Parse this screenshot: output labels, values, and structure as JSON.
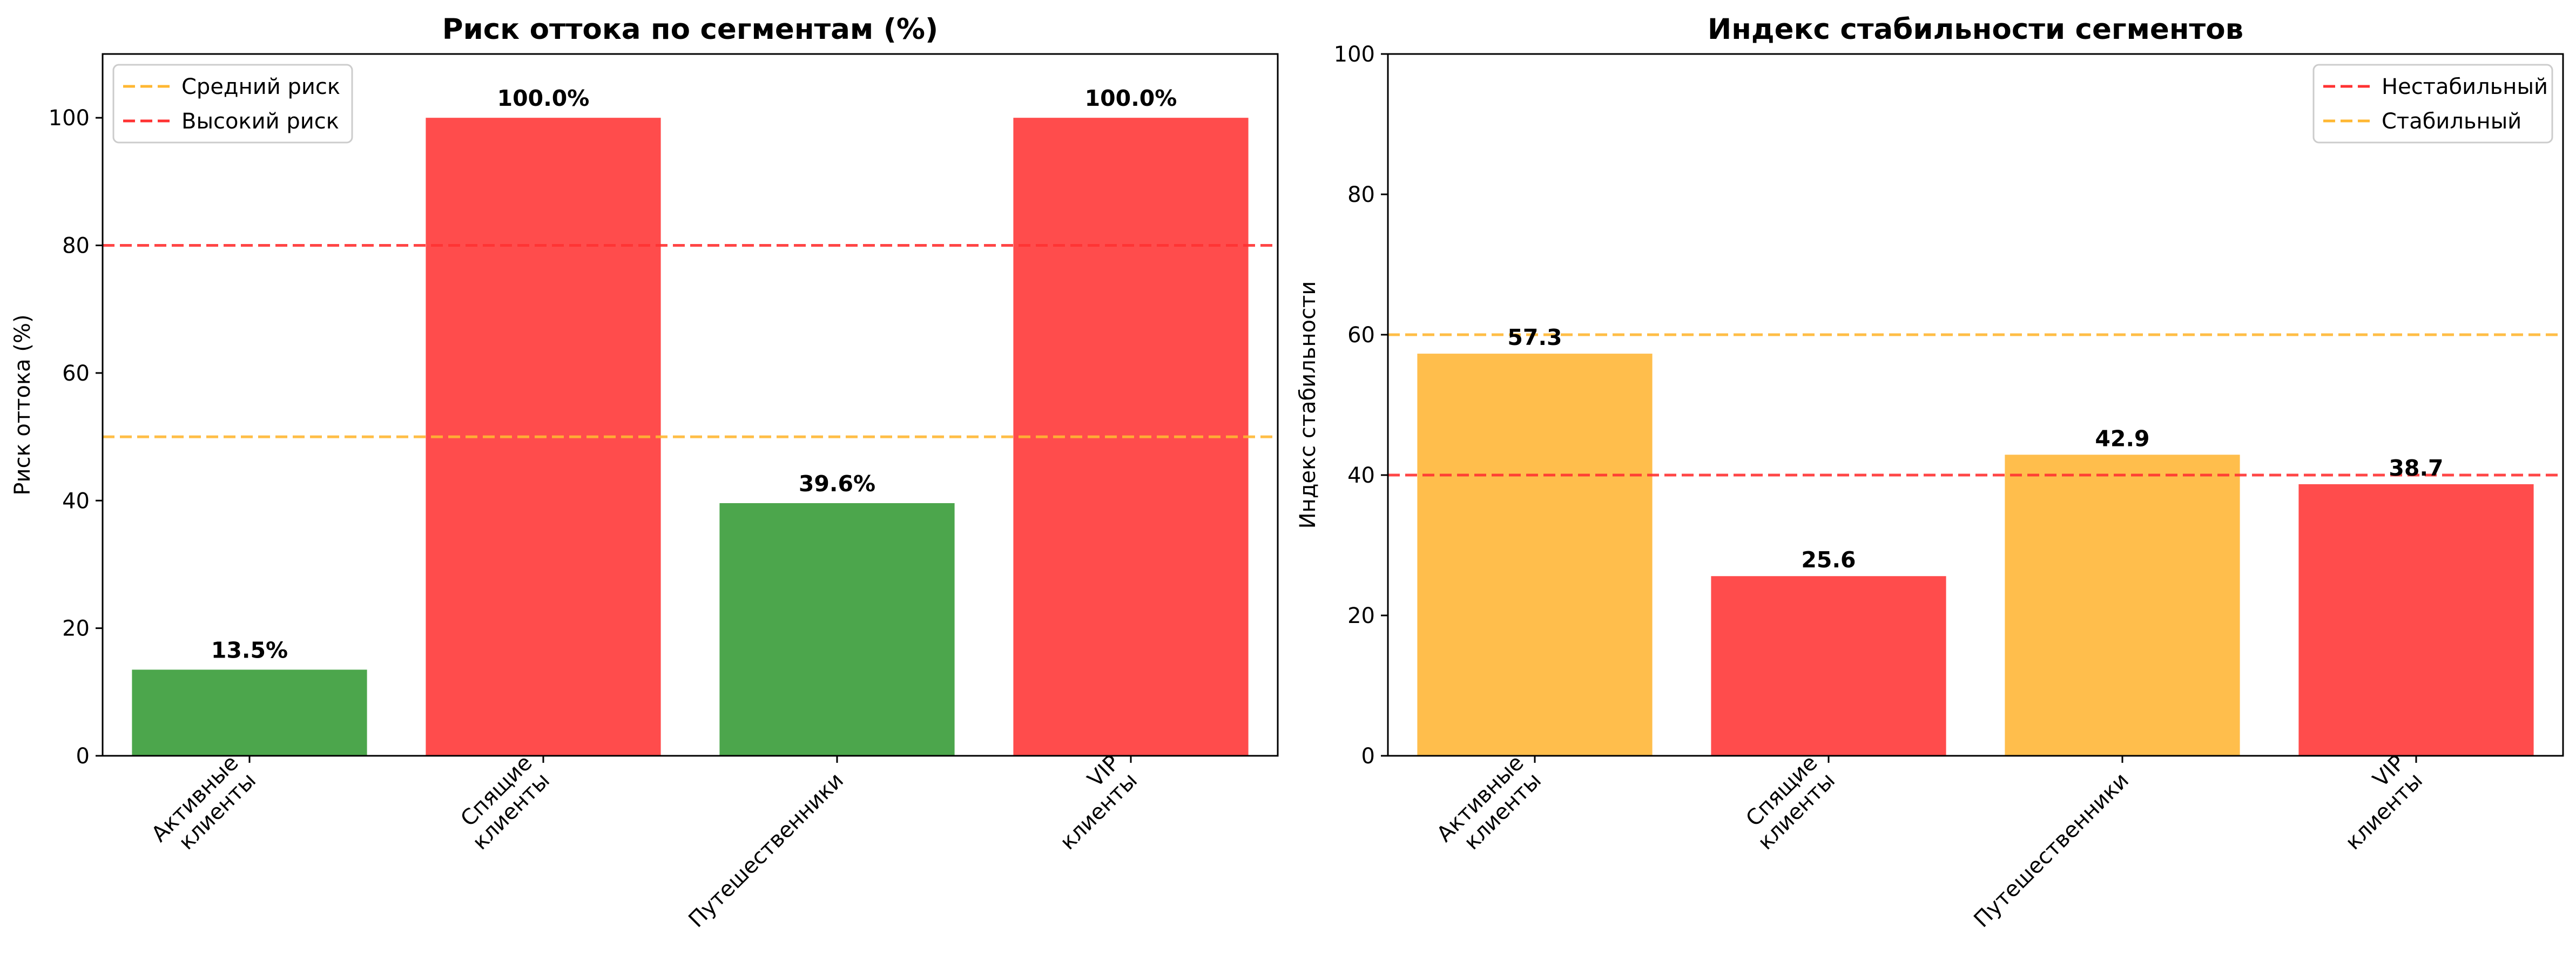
{
  "chart_data": [
    {
      "type": "bar",
      "title": "Риск оттока по сегментам (%)",
      "ylabel": "Риск оттока (%)",
      "xlabel": "",
      "categories": [
        [
          "Активные",
          "клиенты"
        ],
        [
          "Спящие",
          "клиенты"
        ],
        [
          "Путешественники"
        ],
        [
          "VIP",
          "клиенты"
        ]
      ],
      "values": [
        13.5,
        100.0,
        39.6,
        100.0
      ],
      "value_labels": [
        "13.5%",
        "100.0%",
        "39.6%",
        "100.0%"
      ],
      "bar_colors": [
        "#4ca64c",
        "#ff4c4c",
        "#4ca64c",
        "#ff4c4c"
      ],
      "ylim": [
        0,
        110
      ],
      "yticks": [
        0,
        20,
        40,
        60,
        80,
        100
      ],
      "grid": false,
      "legend_position": "top-left",
      "reference_lines": [
        {
          "name": "Средний риск",
          "value": 50,
          "color": "#ffb732"
        },
        {
          "name": "Высокий риск",
          "value": 80,
          "color": "#ff3232"
        }
      ]
    },
    {
      "type": "bar",
      "title": "Индекс стабильности сегментов",
      "ylabel": "Индекс стабильности",
      "xlabel": "",
      "categories": [
        [
          "Активные",
          "клиенты"
        ],
        [
          "Спящие",
          "клиенты"
        ],
        [
          "Путешественники"
        ],
        [
          "VIP",
          "клиенты"
        ]
      ],
      "values": [
        57.3,
        25.6,
        42.9,
        38.7
      ],
      "value_labels": [
        "57.3",
        "25.6",
        "42.9",
        "38.7"
      ],
      "bar_colors": [
        "#ffbe4c",
        "#ff4c4c",
        "#ffbe4c",
        "#ff4c4c"
      ],
      "ylim": [
        0,
        100
      ],
      "yticks": [
        0,
        20,
        40,
        60,
        80,
        100
      ],
      "grid": false,
      "legend_position": "top-right",
      "reference_lines": [
        {
          "name": "Нестабильный",
          "value": 40,
          "color": "#ff3232"
        },
        {
          "name": "Стабильный",
          "value": 60,
          "color": "#ffb732"
        }
      ]
    }
  ]
}
